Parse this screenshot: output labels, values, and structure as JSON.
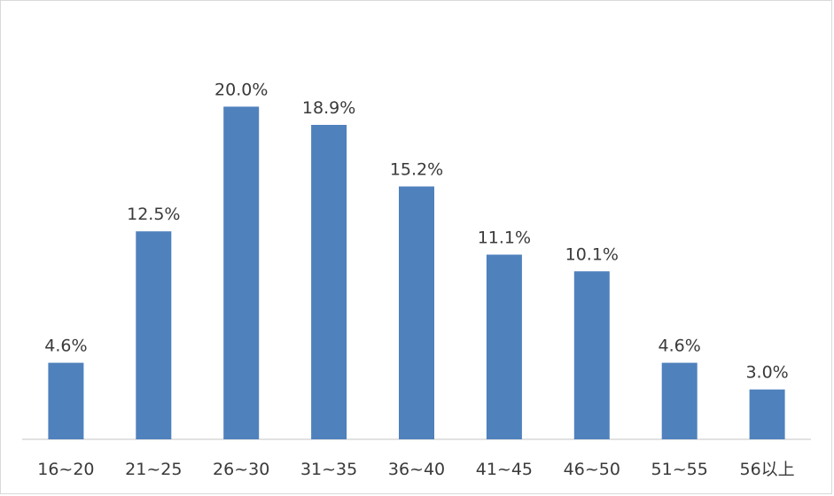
{
  "chart_data": {
    "type": "bar",
    "title": "",
    "xlabel": "",
    "ylabel": "",
    "categories": [
      "16~20",
      "21~25",
      "26~30",
      "31~35",
      "36~40",
      "41~45",
      "46~50",
      "51~55",
      "56以上"
    ],
    "values": [
      4.6,
      12.5,
      20.0,
      18.9,
      15.2,
      11.1,
      10.1,
      4.6,
      3.0
    ],
    "data_labels": [
      "4.6%",
      "12.5%",
      "20.0%",
      "18.9%",
      "15.2%",
      "11.1%",
      "10.1%",
      "4.6%",
      "3.0%"
    ],
    "unit": "%",
    "ylim": [
      0,
      20.5
    ],
    "grid": false,
    "legend": "none",
    "bar_color": "#4f81bd",
    "axis_color": "#d9d9d9",
    "text_color": "#3a3a3a"
  }
}
